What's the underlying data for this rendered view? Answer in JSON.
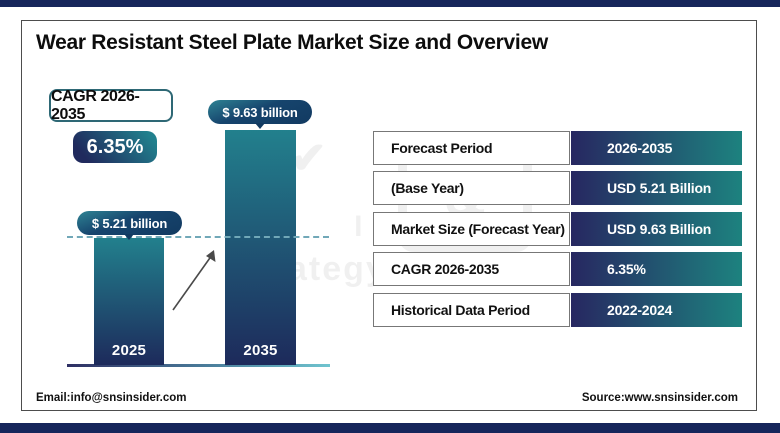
{
  "header": {
    "title": "Wear Resistant Steel Plate Market Size and Overview"
  },
  "cagr_badge": {
    "label": "CAGR 2026-2035",
    "value": "6.35%"
  },
  "chart_data": {
    "type": "bar",
    "categories": [
      "2025",
      "2035"
    ],
    "values": [
      5.21,
      9.63
    ],
    "unit": "USD billion",
    "value_labels": [
      "$ 5.21 billion",
      "$ 9.63 billion"
    ],
    "title": "Wear Resistant Steel Plate Market Size and Overview",
    "xlabel": "",
    "ylabel": "",
    "ylim": [
      0,
      9.63
    ],
    "grid": false,
    "legend": "none",
    "annotations": [
      "dashed horizontal reference line at 2025 bar top",
      "upward growth arrow between the two bars"
    ],
    "bar_color_gradient": [
      "#22808d",
      "#1d2a5b"
    ]
  },
  "table": {
    "rows": [
      {
        "label": "Forecast Period",
        "value": "2026-2035"
      },
      {
        "label": "(Base Year)",
        "value": "USD 5.21 Billion"
      },
      {
        "label": "Market Size (Forecast Year)",
        "value": "USD 9.63 Billion"
      },
      {
        "label": "CAGR 2026-2035",
        "value": "6.35%"
      },
      {
        "label": "Historical Data Period",
        "value": "2022-2024"
      }
    ]
  },
  "watermark": {
    "symbol": "&",
    "line1": "INSIDER",
    "line2": "ategy & Stats",
    "check": "✔"
  },
  "footer": {
    "email": "Email:info@snsinsider.com",
    "source": "Source:www.snsinsider.com"
  },
  "colors": {
    "navy_bar": "#16265b",
    "bar_top_teal": "#22808d",
    "bar_bottom_navy": "#1d2a5b",
    "value_cell_left": "#272761",
    "value_cell_right": "#1d827f",
    "dashed_line": "#71a8b8"
  }
}
